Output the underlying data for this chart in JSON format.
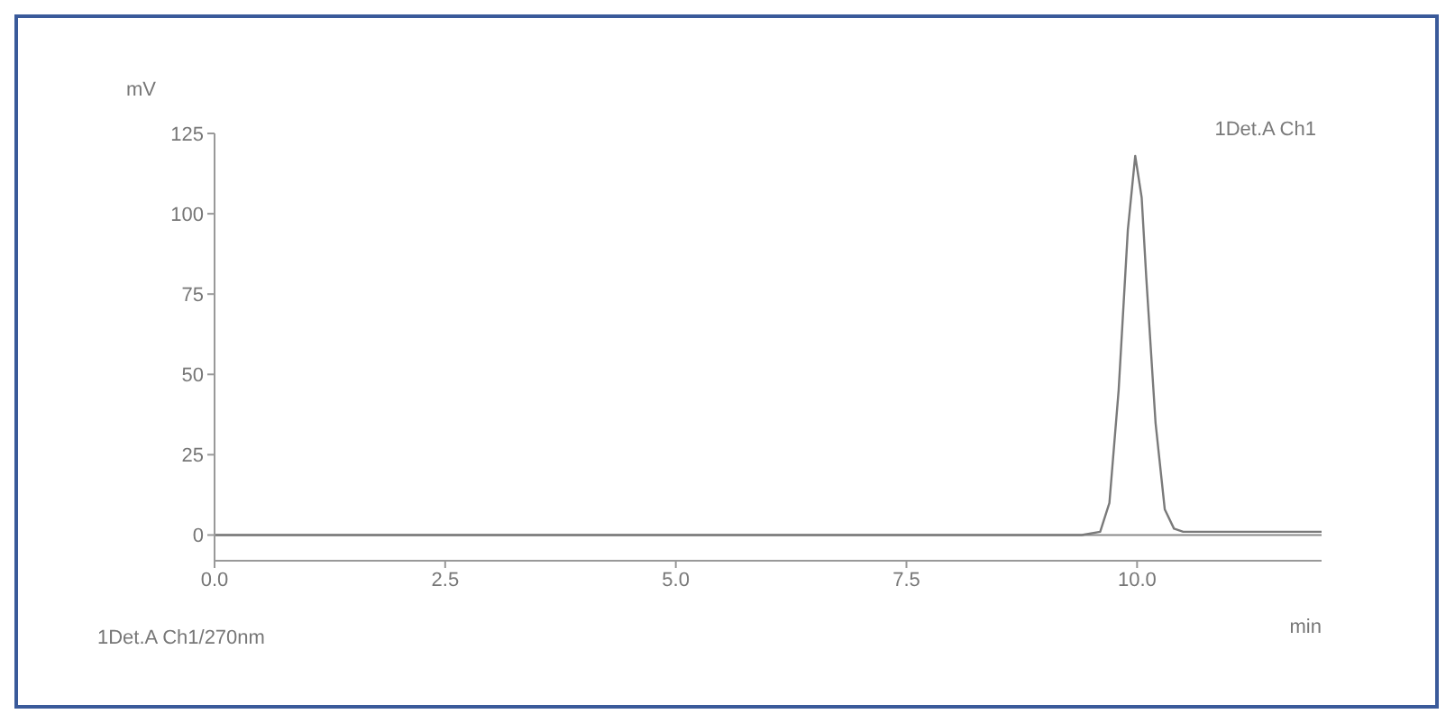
{
  "chart_data": {
    "type": "line",
    "xlabel": "min",
    "ylabel": "mV",
    "annotations": [
      "1Det.A Ch1/270nm"
    ],
    "series": [
      {
        "name": "1Det.A Ch1",
        "color": "#7a7a7a",
        "x": [
          0,
          2,
          4,
          6,
          8,
          9.4,
          9.6,
          9.7,
          9.8,
          9.9,
          9.98,
          10.05,
          10.1,
          10.2,
          10.3,
          10.4,
          10.5,
          10.7,
          11.0,
          12.0
        ],
        "values": [
          0,
          0,
          0,
          0,
          0,
          0,
          1,
          10,
          45,
          95,
          118,
          105,
          80,
          35,
          8,
          2,
          1,
          1,
          1,
          1
        ]
      }
    ],
    "xlim": [
      0,
      12
    ],
    "ylim": [
      -8,
      125
    ],
    "xticks": [
      {
        "value": 0,
        "label": "0.0"
      },
      {
        "value": 2.5,
        "label": "2.5"
      },
      {
        "value": 5,
        "label": "5.0"
      },
      {
        "value": 7.5,
        "label": "7.5"
      },
      {
        "value": 10,
        "label": "10.0"
      }
    ],
    "yticks": [
      0,
      25,
      50,
      75,
      100,
      125
    ],
    "ref_lines": [
      {
        "axis": "y",
        "value": 0,
        "color": "#8a8a8a"
      }
    ],
    "legend": "top right",
    "grid": false,
    "marker": "none",
    "line_style": "solid"
  }
}
